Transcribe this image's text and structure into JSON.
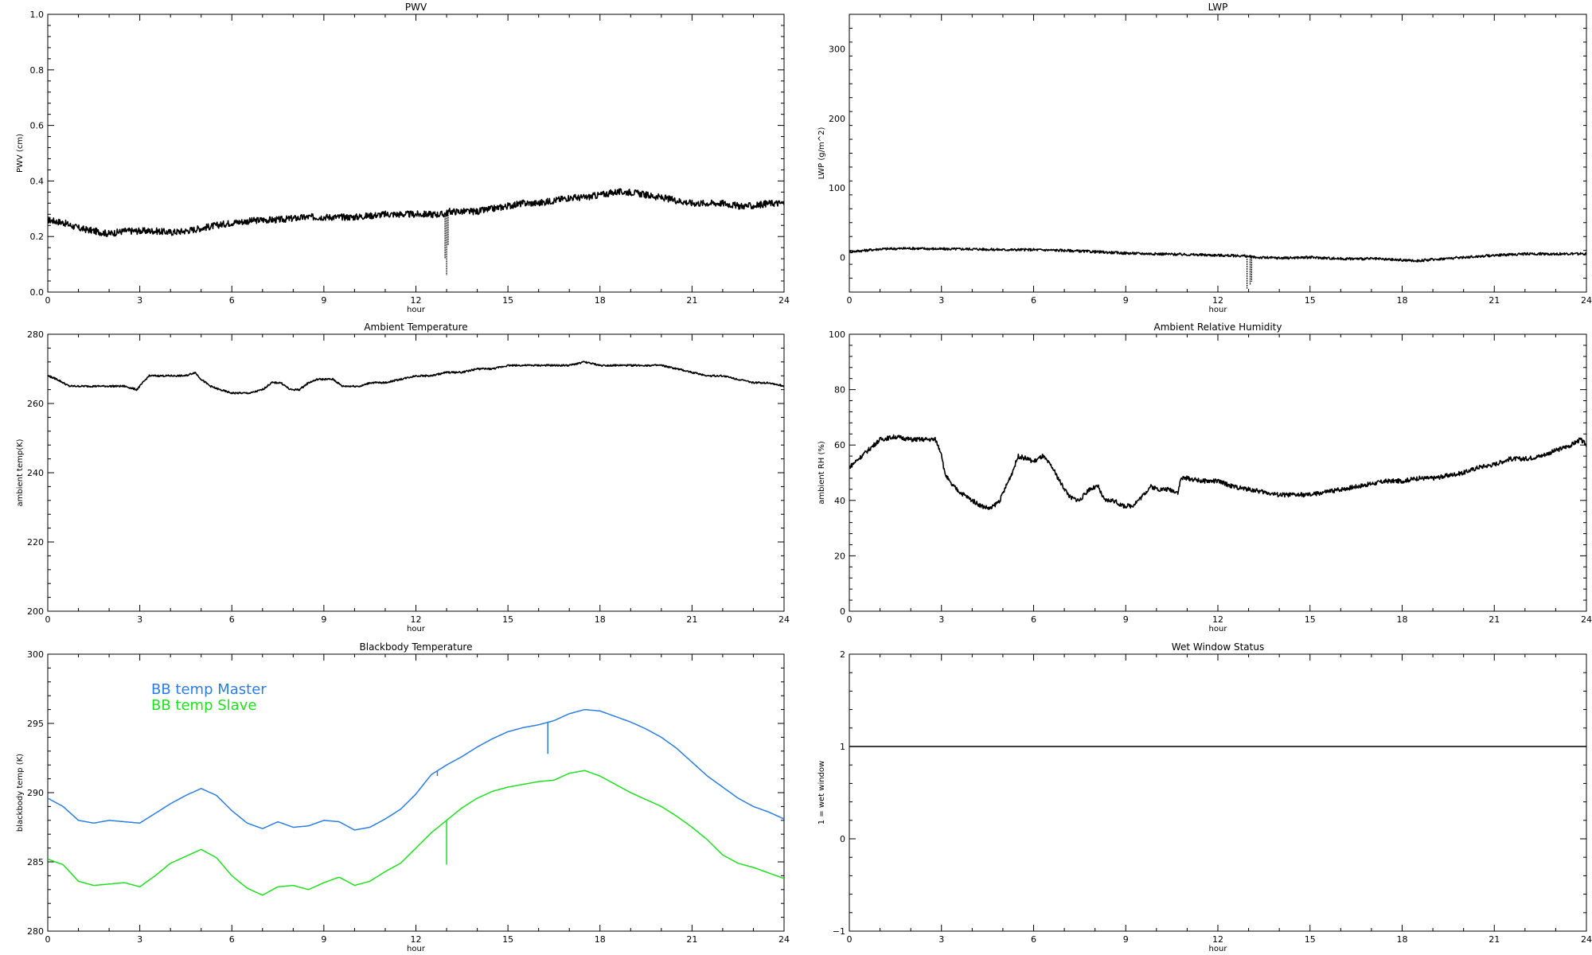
{
  "chart_data": [
    {
      "id": "pwv",
      "type": "line",
      "title": "PWV",
      "xlabel": "hour",
      "ylabel": "PWV (cm)",
      "xlim": [
        0,
        24
      ],
      "ylim": [
        0,
        1.0
      ],
      "xticks": [
        0,
        3,
        6,
        9,
        12,
        15,
        18,
        21,
        24
      ],
      "yticks": [
        0.0,
        0.2,
        0.4,
        0.6,
        0.8,
        1.0
      ],
      "ytick_labels": [
        "0.0",
        "0.2",
        "0.4",
        "0.6",
        "0.8",
        "1.0"
      ],
      "series": [
        {
          "color": "#000000",
          "noise": 0.012,
          "dropout": [
            [
              13.0,
              0.06
            ],
            [
              12.95,
              0.12
            ],
            [
              13.05,
              0.17
            ]
          ],
          "x": [
            0,
            0.5,
            1,
            1.5,
            2,
            2.5,
            3,
            3.5,
            4,
            4.5,
            5,
            5.5,
            6,
            6.5,
            7,
            7.5,
            8,
            8.5,
            9,
            9.5,
            10,
            10.5,
            11,
            11.5,
            12,
            12.5,
            12.9,
            13.1,
            13.5,
            14,
            14.5,
            15,
            15.5,
            16,
            16.5,
            17,
            17.5,
            18,
            18.5,
            19,
            19.5,
            20,
            20.5,
            21,
            21.5,
            22,
            22.5,
            23,
            23.5,
            24
          ],
          "y": [
            0.26,
            0.25,
            0.23,
            0.22,
            0.21,
            0.22,
            0.22,
            0.22,
            0.215,
            0.22,
            0.23,
            0.24,
            0.25,
            0.255,
            0.26,
            0.26,
            0.265,
            0.27,
            0.27,
            0.27,
            0.27,
            0.275,
            0.28,
            0.28,
            0.28,
            0.28,
            0.28,
            0.29,
            0.29,
            0.29,
            0.3,
            0.31,
            0.32,
            0.32,
            0.33,
            0.34,
            0.34,
            0.35,
            0.36,
            0.36,
            0.35,
            0.34,
            0.33,
            0.32,
            0.32,
            0.32,
            0.31,
            0.31,
            0.32,
            0.32
          ]
        }
      ]
    },
    {
      "id": "lwp",
      "type": "line",
      "title": "LWP",
      "xlabel": "hour",
      "ylabel": "LWP (g/m^2)",
      "xlim": [
        0,
        24
      ],
      "ylim": [
        -50,
        350
      ],
      "xticks": [
        0,
        3,
        6,
        9,
        12,
        15,
        18,
        21,
        24
      ],
      "yticks": [
        0,
        100,
        200,
        300
      ],
      "ytick_labels": [
        "0",
        "100",
        "200",
        "300"
      ],
      "series": [
        {
          "color": "#000000",
          "noise": 1.8,
          "dropout": [
            [
              12.95,
              -45
            ],
            [
              13.05,
              -40
            ],
            [
              13.1,
              -35
            ]
          ],
          "x": [
            0,
            1,
            2,
            3,
            4,
            5,
            6,
            7,
            8,
            9,
            10,
            11,
            12,
            12.9,
            13.2,
            14,
            15,
            16,
            17,
            18,
            18.5,
            19,
            20,
            21,
            22,
            23,
            24
          ],
          "y": [
            8,
            12,
            13,
            12,
            12,
            11,
            11,
            10,
            8,
            6,
            5,
            4,
            3,
            2,
            0,
            -1,
            0,
            -2,
            -2,
            -4,
            -5,
            -3,
            0,
            3,
            5,
            5,
            5
          ]
        }
      ]
    },
    {
      "id": "ambtemp",
      "type": "line",
      "title": "Ambient Temperature",
      "xlabel": "hour",
      "ylabel": "ambient temp(K)",
      "xlim": [
        0,
        24
      ],
      "ylim": [
        200,
        280
      ],
      "xticks": [
        0,
        3,
        6,
        9,
        12,
        15,
        18,
        21,
        24
      ],
      "yticks": [
        200,
        220,
        240,
        260,
        280
      ],
      "ytick_labels": [
        "200",
        "220",
        "240",
        "260",
        "280"
      ],
      "series": [
        {
          "color": "#000000",
          "noise": 0.25,
          "x": [
            0,
            0.3,
            0.7,
            1,
            1.5,
            2,
            2.5,
            2.9,
            3.1,
            3.3,
            3.6,
            4,
            4.5,
            4.8,
            5,
            5.3,
            5.6,
            6,
            6.3,
            6.6,
            7,
            7.3,
            7.6,
            7.9,
            8.2,
            8.5,
            8.8,
            9,
            9.3,
            9.6,
            9.9,
            10.2,
            10.5,
            11,
            11.5,
            12,
            12.5,
            13,
            13.5,
            14,
            14.5,
            15,
            15.5,
            16,
            16.5,
            17,
            17.5,
            18,
            18.5,
            19,
            19.5,
            20,
            20.5,
            21,
            21.5,
            22,
            22.5,
            23,
            23.5,
            24
          ],
          "y": [
            268,
            267,
            265,
            265,
            265,
            265,
            265,
            264,
            266,
            268,
            268,
            268,
            268,
            269,
            267,
            265,
            264,
            263,
            263,
            263,
            264,
            266,
            266,
            264,
            264,
            266,
            267,
            267,
            267,
            265,
            265,
            265,
            266,
            266,
            267,
            268,
            268,
            269,
            269,
            270,
            270,
            271,
            271,
            271,
            271,
            271,
            272,
            271,
            271,
            271,
            271,
            271,
            270,
            269,
            268,
            268,
            267,
            266,
            266,
            265
          ]
        }
      ]
    },
    {
      "id": "ambrh",
      "type": "line",
      "title": "Ambient Relative Humidity",
      "xlabel": "hour",
      "ylabel": "ambient RH (%)",
      "xlim": [
        0,
        24
      ],
      "ylim": [
        0,
        100
      ],
      "xticks": [
        0,
        3,
        6,
        9,
        12,
        15,
        18,
        21,
        24
      ],
      "yticks": [
        0,
        20,
        40,
        60,
        80,
        100
      ],
      "ytick_labels": [
        "0",
        "20",
        "40",
        "60",
        "80",
        "100"
      ],
      "series": [
        {
          "color": "#000000",
          "noise": 0.8,
          "x": [
            0,
            0.2,
            0.5,
            0.8,
            1,
            1.5,
            2,
            2.5,
            2.8,
            3,
            3.1,
            3.3,
            3.6,
            4,
            4.3,
            4.6,
            4.9,
            5.1,
            5.3,
            5.5,
            5.8,
            6,
            6.3,
            6.6,
            6.9,
            7.2,
            7.5,
            7.8,
            8.1,
            8.3,
            8.6,
            8.9,
            9.2,
            9.5,
            9.8,
            10.1,
            10.4,
            10.7,
            10.8,
            11,
            11.5,
            12,
            12.5,
            13,
            13.5,
            14,
            14.5,
            15,
            15.5,
            16,
            16.5,
            17,
            17.5,
            18,
            18.5,
            19,
            19.5,
            20,
            20.5,
            21,
            21.5,
            22,
            22.5,
            23,
            23.5,
            23.8,
            24
          ],
          "y": [
            52,
            54,
            57,
            60,
            62,
            63,
            62,
            62,
            62,
            57,
            50,
            46,
            43,
            40,
            38,
            37,
            40,
            45,
            50,
            56,
            55,
            54,
            56,
            52,
            46,
            41,
            40,
            44,
            45,
            40,
            40,
            38,
            38,
            41,
            45,
            44,
            44,
            43,
            48,
            48,
            47,
            47,
            45,
            44,
            43,
            42,
            42,
            42,
            43,
            44,
            45,
            46,
            47,
            47,
            48,
            48,
            49,
            50,
            52,
            53,
            55,
            55,
            56,
            58,
            60,
            62,
            60
          ]
        }
      ]
    },
    {
      "id": "bbtemp",
      "type": "line",
      "title": "Blackbody Temperature",
      "xlabel": "hour",
      "ylabel": "blackbody temp (K)",
      "xlim": [
        0,
        24
      ],
      "ylim": [
        280,
        300
      ],
      "xticks": [
        0,
        3,
        6,
        9,
        12,
        15,
        18,
        21,
        24
      ],
      "yticks": [
        280,
        285,
        290,
        295,
        300
      ],
      "ytick_labels": [
        "280",
        "285",
        "290",
        "295",
        "300"
      ],
      "legend": [
        {
          "label": "BB temp Master",
          "color": "#2a7de1"
        },
        {
          "label": "BB temp Slave",
          "color": "#1ee01e"
        }
      ],
      "series": [
        {
          "name": "BB temp Master",
          "color": "#2a7de1",
          "noise": 0,
          "spikes": [
            [
              12.7,
              291.2
            ],
            [
              16.3,
              292.8
            ]
          ],
          "x": [
            0,
            0.5,
            1,
            1.5,
            2,
            2.5,
            3,
            3.5,
            4,
            4.5,
            5,
            5.5,
            6,
            6.5,
            7,
            7.5,
            8,
            8.5,
            9,
            9.5,
            10,
            10.5,
            11,
            11.5,
            12,
            12.5,
            13,
            13.5,
            14,
            14.5,
            15,
            15.5,
            16,
            16.5,
            17,
            17.5,
            18,
            18.5,
            19,
            19.5,
            20,
            20.5,
            21,
            21.5,
            22,
            22.5,
            23,
            23.5,
            24
          ],
          "y": [
            289.6,
            289.0,
            288.0,
            287.8,
            288.0,
            287.9,
            287.8,
            288.5,
            289.2,
            289.8,
            290.3,
            289.8,
            288.7,
            287.8,
            287.4,
            287.9,
            287.5,
            287.6,
            288.0,
            287.9,
            287.3,
            287.5,
            288.1,
            288.8,
            289.9,
            291.3,
            292.0,
            292.6,
            293.3,
            293.9,
            294.4,
            294.7,
            294.9,
            295.2,
            295.7,
            296.0,
            295.9,
            295.5,
            295.1,
            294.6,
            294.0,
            293.2,
            292.2,
            291.2,
            290.4,
            289.6,
            289.0,
            288.6,
            288.1
          ]
        },
        {
          "name": "BB temp Slave",
          "color": "#1ee01e",
          "noise": 0,
          "spikes": [
            [
              13.0,
              284.8
            ]
          ],
          "x": [
            0,
            0.5,
            1,
            1.5,
            2,
            2.5,
            3,
            3.5,
            4,
            4.5,
            5,
            5.5,
            6,
            6.5,
            7,
            7.5,
            8,
            8.5,
            9,
            9.5,
            10,
            10.5,
            11,
            11.5,
            12,
            12.5,
            13,
            13.5,
            14,
            14.5,
            15,
            15.5,
            16,
            16.5,
            17,
            17.5,
            18,
            18.5,
            19,
            19.5,
            20,
            20.5,
            21,
            21.5,
            22,
            22.5,
            23,
            23.5,
            24
          ],
          "y": [
            285.2,
            284.8,
            283.6,
            283.3,
            283.4,
            283.5,
            283.2,
            284.0,
            284.9,
            285.4,
            285.9,
            285.3,
            284.0,
            283.1,
            282.6,
            283.2,
            283.3,
            283.0,
            283.5,
            283.9,
            283.3,
            283.6,
            284.3,
            284.9,
            286.0,
            287.1,
            288.0,
            288.9,
            289.6,
            290.1,
            290.4,
            290.6,
            290.8,
            290.9,
            291.4,
            291.6,
            291.2,
            290.6,
            290.0,
            289.5,
            289.0,
            288.3,
            287.5,
            286.6,
            285.5,
            284.9,
            284.6,
            284.2,
            283.8
          ]
        }
      ]
    },
    {
      "id": "wetwindow",
      "type": "line",
      "title": "Wet Window Status",
      "xlabel": "hour",
      "ylabel": "1 = wet window",
      "xlim": [
        0,
        24
      ],
      "ylim": [
        -1,
        2
      ],
      "xticks": [
        0,
        3,
        6,
        9,
        12,
        15,
        18,
        21,
        24
      ],
      "yticks": [
        -1,
        0,
        1,
        2
      ],
      "ytick_labels": [
        "−1",
        "0",
        "1",
        "2"
      ],
      "series": [
        {
          "color": "#000000",
          "noise": 0,
          "x": [
            0,
            24
          ],
          "y": [
            1,
            1
          ]
        }
      ]
    }
  ]
}
